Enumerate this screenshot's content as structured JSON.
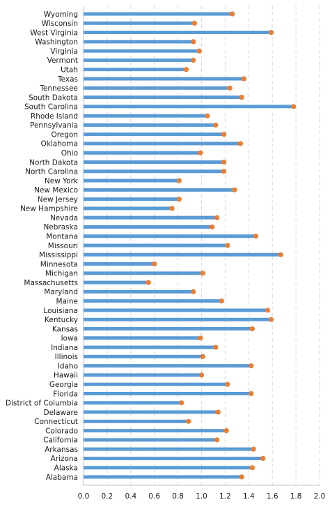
{
  "chart_data": {
    "type": "bar",
    "orientation": "horizontal",
    "style": "lollipop",
    "title": "",
    "xlabel": "",
    "ylabel": "",
    "xlim": [
      0,
      2.0
    ],
    "x_ticks": [
      "0.0",
      "0.2",
      "0.4",
      "0.6",
      "0.8",
      "1.0",
      "1.2",
      "1.4",
      "1.6",
      "1.8",
      "2.0"
    ],
    "grid": "vertical dashed",
    "legend": "none",
    "colors": {
      "bar": "#5b9bd5",
      "dot": "#ed7d31",
      "grid": "#d9d9d9",
      "axis": "#bfbfbf"
    },
    "categories": [
      "Wyoming",
      "Wisconsin",
      "West Virginia",
      "Washington",
      "Virginia",
      "Vermont",
      "Utah",
      "Texas",
      "Tennessee",
      "South Dakota",
      "South Carolina",
      "Rhode Island",
      "Pennsylvania",
      "Oregon",
      "Oklahoma",
      "Ohio",
      "North Dakota",
      "North Carolina",
      "New York",
      "New Mexico",
      "New Jersey",
      "New Hampshire",
      "Nevada",
      "Nebraska",
      "Montana",
      "Missouri",
      "Mississippi",
      "Minnesota",
      "Michigan",
      "Massachusetts",
      "Maryland",
      "Maine",
      "Louisiana",
      "Kentucky",
      "Kansas",
      "Iowa",
      "Indiana",
      "Illinois",
      "Idaho",
      "Hawaii",
      "Georgia",
      "Florida",
      "District of Columbia",
      "Delaware",
      "Connecticut",
      "Colorado",
      "California",
      "Arkansas",
      "Arizona",
      "Alaska",
      "Alabama"
    ],
    "values": [
      1.26,
      0.94,
      1.59,
      0.93,
      0.98,
      0.93,
      0.87,
      1.36,
      1.24,
      1.34,
      1.78,
      1.05,
      1.12,
      1.19,
      1.33,
      0.99,
      1.19,
      1.19,
      0.81,
      1.28,
      0.81,
      0.75,
      1.13,
      1.09,
      1.46,
      1.22,
      1.67,
      0.6,
      1.01,
      0.55,
      0.93,
      1.17,
      1.56,
      1.59,
      1.43,
      0.99,
      1.12,
      1.01,
      1.42,
      1.0,
      1.22,
      1.42,
      0.83,
      1.14,
      0.89,
      1.21,
      1.13,
      1.44,
      1.52,
      1.43,
      1.34
    ]
  }
}
